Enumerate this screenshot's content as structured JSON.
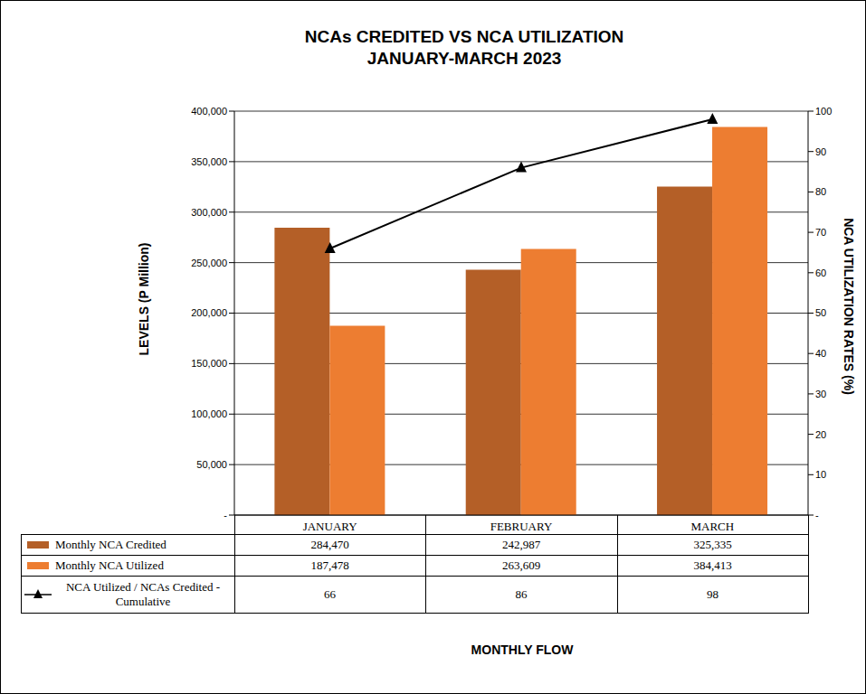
{
  "chart_data": {
    "type": "bar",
    "title": "NCAs CREDITED VS NCA UTILIZATION",
    "subtitle": "JANUARY-MARCH 2023",
    "x_label": "MONTHLY FLOW",
    "y_label": "LEVELS (P Million)",
    "y2_label": "NCA UTILIZATION RATES (%)",
    "categories": [
      "JANUARY",
      "FEBRUARY",
      "MARCH"
    ],
    "series": [
      {
        "name": "Monthly NCA Credited",
        "type": "bar",
        "color": "#b45f27",
        "values": [
          284470,
          242987,
          325335
        ],
        "value_labels": [
          "284,470",
          "242,987",
          "325,335"
        ]
      },
      {
        "name": "Monthly NCA Utilized",
        "type": "bar",
        "color": "#ed7d31",
        "values": [
          187478,
          263609,
          384413
        ],
        "value_labels": [
          "187,478",
          "263,609",
          "384,413"
        ]
      },
      {
        "name": "NCA Utilized / NCAs Credited - Cumulative",
        "type": "line",
        "axis": "y2",
        "color": "#000000",
        "marker": "triangle",
        "values": [
          66,
          86,
          98
        ]
      }
    ],
    "ylim": [
      0,
      400000
    ],
    "yticks": [
      {
        "value": 0,
        "label": "-"
      },
      {
        "value": 50000,
        "label": "50,000"
      },
      {
        "value": 100000,
        "label": "100,000"
      },
      {
        "value": 150000,
        "label": "150,000"
      },
      {
        "value": 200000,
        "label": "200,000"
      },
      {
        "value": 250000,
        "label": "250,000"
      },
      {
        "value": 300000,
        "label": "300,000"
      },
      {
        "value": 350000,
        "label": "350,000"
      },
      {
        "value": 400000,
        "label": "400,000"
      }
    ],
    "y2lim": [
      0,
      100
    ],
    "y2ticks": [
      {
        "value": 0,
        "label": "-"
      },
      10,
      20,
      30,
      40,
      50,
      60,
      70,
      80,
      90,
      100
    ],
    "grid": true
  }
}
